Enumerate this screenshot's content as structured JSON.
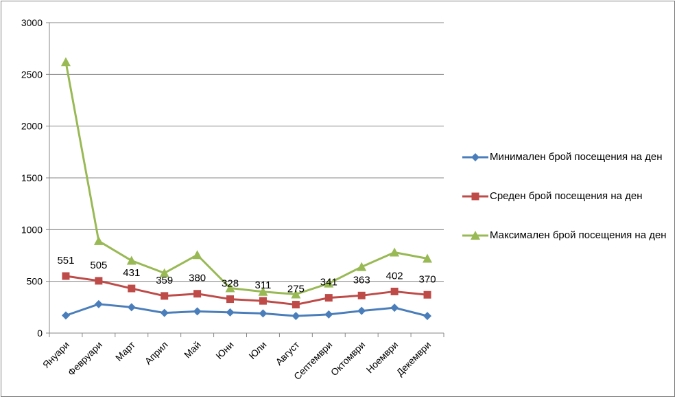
{
  "chart_data": {
    "type": "line",
    "categories": [
      "Януари",
      "Февруари",
      "Март",
      "Април",
      "Май",
      "Юни",
      "Юли",
      "Август",
      "Септември",
      "Октомври",
      "Ноември",
      "Декември"
    ],
    "ylim": [
      0,
      3000
    ],
    "yticks": [
      "0",
      "500",
      "1000",
      "1500",
      "2000",
      "2500",
      "3000"
    ],
    "grid": true,
    "legend_position": "right",
    "series": [
      {
        "name": "Минимален брой посещения на ден",
        "color": "#4a7ebb",
        "marker": "diamond",
        "values": [
          170,
          280,
          250,
          195,
          210,
          200,
          190,
          165,
          180,
          215,
          245,
          165
        ]
      },
      {
        "name": "Среден брой посещения на ден",
        "color": "#be4b48",
        "marker": "square",
        "values": [
          551,
          505,
          431,
          359,
          380,
          328,
          311,
          275,
          341,
          363,
          402,
          370
        ],
        "data_labels": [
          "551",
          "505",
          "431",
          "359",
          "380",
          "328",
          "311",
          "275",
          "341",
          "363",
          "402",
          "370"
        ]
      },
      {
        "name": "Максимален брой посещения на ден",
        "color": "#98b954",
        "marker": "triangle",
        "values": [
          2620,
          890,
          700,
          580,
          755,
          435,
          400,
          375,
          480,
          640,
          780,
          720
        ]
      }
    ]
  }
}
